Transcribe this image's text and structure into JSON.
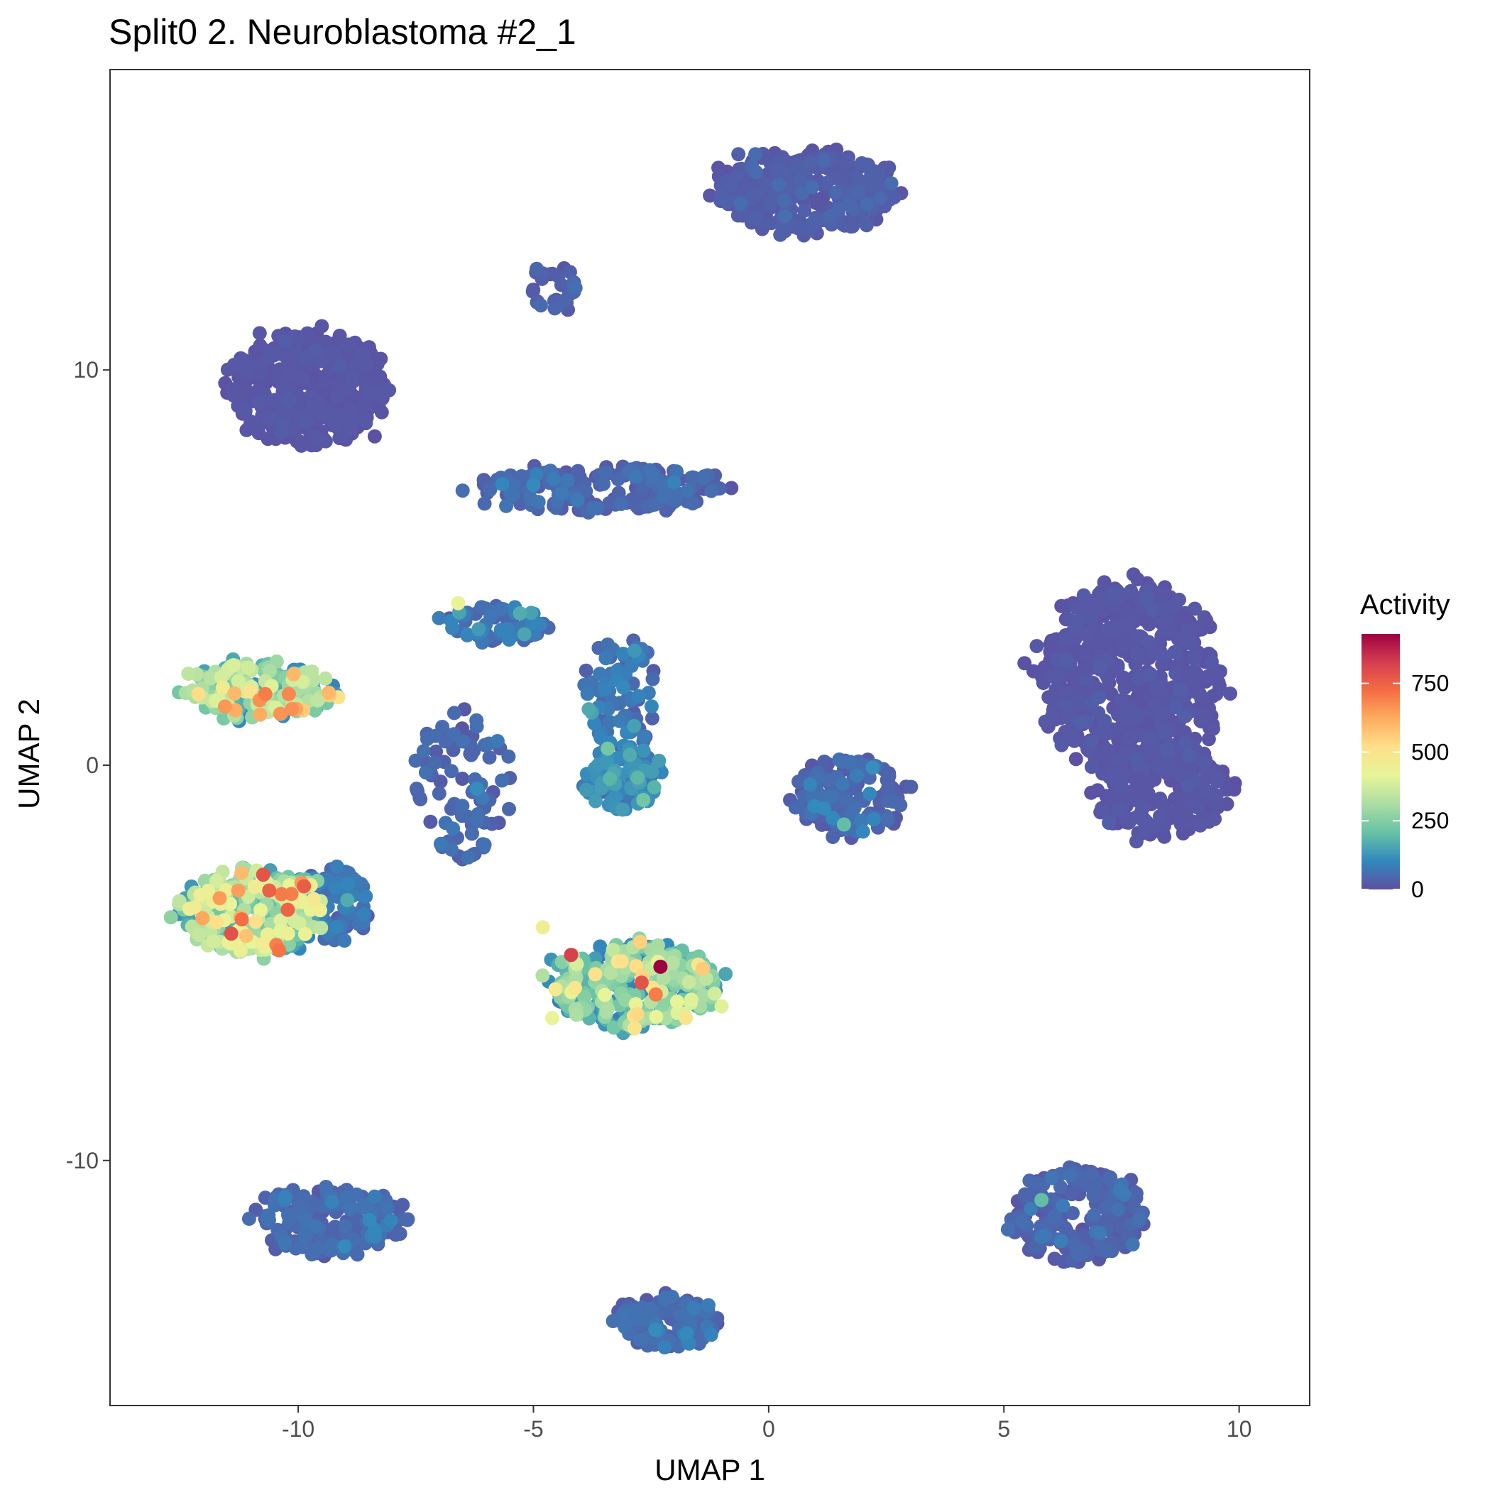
{
  "chart_data": {
    "type": "scatter",
    "title": "Split0 2. Neuroblastoma #2_1",
    "xlabel": "UMAP 1",
    "ylabel": "UMAP 2",
    "xlim": [
      -14,
      11.5
    ],
    "ylim": [
      -16.2,
      17.6
    ],
    "x_ticks": [
      -10,
      -5,
      0,
      5,
      10
    ],
    "x_tick_labels": [
      "-10",
      "-5",
      "0",
      "5",
      "10"
    ],
    "y_ticks": [
      -10,
      0,
      10
    ],
    "y_tick_labels": [
      "-10",
      "0",
      "10"
    ],
    "grid": false,
    "legend": {
      "title": "Activity",
      "position": "right",
      "type": "colorbar",
      "range": [
        0,
        930
      ],
      "ticks": [
        0,
        250,
        500,
        750
      ],
      "tick_labels": [
        "0",
        "250",
        "500",
        "750"
      ],
      "colors": [
        "#5e4fa2",
        "#3288bd",
        "#66c2a5",
        "#abdda4",
        "#e6f598",
        "#fee08b",
        "#fdae61",
        "#f46d43",
        "#d53e4f",
        "#9e0142"
      ]
    },
    "clusters": [
      {
        "cx": 0.8,
        "cy": 14.5,
        "sx": 1.6,
        "sy": 0.9,
        "n": 340,
        "act": 20
      },
      {
        "cx": -9.8,
        "cy": 9.5,
        "sx": 1.4,
        "sy": 1.2,
        "n": 420,
        "act": 10
      },
      {
        "cx": -4.6,
        "cy": 12.1,
        "sx": 0.5,
        "sy": 0.5,
        "n": 30,
        "act": 30
      },
      {
        "cx": -3.5,
        "cy": 7.0,
        "sx": 2.2,
        "sy": 0.5,
        "n": 190,
        "act": 40
      },
      {
        "cx": -5.8,
        "cy": 3.6,
        "sx": 0.9,
        "sy": 0.4,
        "n": 70,
        "act": 60
      },
      {
        "cx": -6.5,
        "cy": -0.5,
        "sx": 0.9,
        "sy": 1.6,
        "n": 90,
        "act": 40
      },
      {
        "cx": -3.2,
        "cy": 1.8,
        "sx": 0.7,
        "sy": 1.3,
        "n": 80,
        "act": 60
      },
      {
        "cx": -3.1,
        "cy": -0.3,
        "sx": 0.7,
        "sy": 0.7,
        "n": 110,
        "act": 90
      },
      {
        "cx": -10.8,
        "cy": 1.9,
        "sx": 1.3,
        "sy": 0.6,
        "n": 230,
        "act": 240
      },
      {
        "cx": -11.0,
        "cy": -3.7,
        "sx": 1.3,
        "sy": 0.9,
        "n": 290,
        "act": 280
      },
      {
        "cx": -9.3,
        "cy": -3.5,
        "sx": 0.7,
        "sy": 0.8,
        "n": 110,
        "act": 60
      },
      {
        "cx": -2.8,
        "cy": -5.6,
        "sx": 1.5,
        "sy": 0.9,
        "n": 380,
        "act": 200
      },
      {
        "cx": 1.7,
        "cy": -0.8,
        "sx": 1.0,
        "sy": 0.8,
        "n": 170,
        "act": 40
      },
      {
        "cx": 7.7,
        "cy": 2.2,
        "sx": 1.6,
        "sy": 2.0,
        "n": 620,
        "act": 10
      },
      {
        "cx": 8.4,
        "cy": -0.6,
        "sx": 1.2,
        "sy": 1.0,
        "n": 230,
        "act": 10
      },
      {
        "cx": 6.6,
        "cy": -11.4,
        "sx": 1.2,
        "sy": 1.0,
        "n": 230,
        "act": 30
      },
      {
        "cx": -9.3,
        "cy": -11.5,
        "sx": 1.4,
        "sy": 0.7,
        "n": 200,
        "act": 40
      },
      {
        "cx": -2.2,
        "cy": -14.1,
        "sx": 0.9,
        "sy": 0.55,
        "n": 140,
        "act": 40
      }
    ],
    "notable_points": [
      {
        "x": -2.3,
        "y": -5.1,
        "value": 930
      },
      {
        "x": -4.2,
        "y": -4.8,
        "value": 820
      },
      {
        "x": -2.7,
        "y": -5.5,
        "value": 780
      },
      {
        "x": -2.4,
        "y": -5.8,
        "value": 700
      },
      {
        "x": -11.2,
        "y": -3.9,
        "value": 720
      },
      {
        "x": -10.7,
        "y": 1.8,
        "value": 700
      },
      {
        "x": -10.2,
        "y": 1.8,
        "value": 680
      },
      {
        "x": -10.1,
        "y": 2.3,
        "value": 600
      },
      {
        "x": -6.6,
        "y": 4.1,
        "value": 430
      },
      {
        "x": -4.8,
        "y": -4.1,
        "value": 450
      },
      {
        "x": -4.6,
        "y": -6.4,
        "value": 420
      },
      {
        "x": -1.0,
        "y": -6.1,
        "value": 400
      },
      {
        "x": 5.8,
        "y": -11.0,
        "value": 200
      },
      {
        "x": 1.6,
        "y": -1.5,
        "value": 200
      }
    ]
  }
}
